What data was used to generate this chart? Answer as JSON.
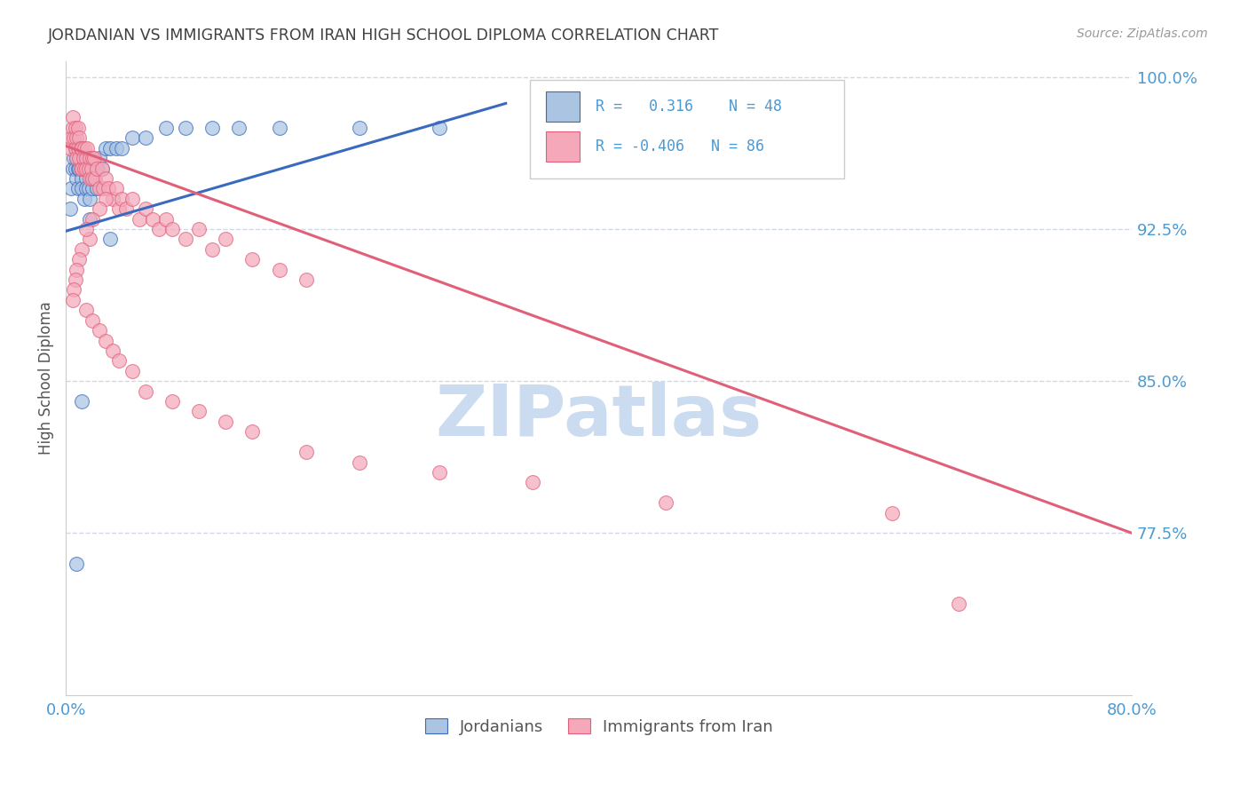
{
  "title": "JORDANIAN VS IMMIGRANTS FROM IRAN HIGH SCHOOL DIPLOMA CORRELATION CHART",
  "source": "Source: ZipAtlas.com",
  "ylabel": "High School Diploma",
  "ytick_labels": [
    "100.0%",
    "92.5%",
    "85.0%",
    "77.5%"
  ],
  "ytick_values": [
    1.0,
    0.925,
    0.85,
    0.775
  ],
  "blue_color": "#aac4e2",
  "pink_color": "#f4a8ba",
  "blue_line_color": "#3a6abf",
  "pink_line_color": "#e0607a",
  "watermark_text": "ZIPatlas",
  "watermark_color": "#ccdcf0",
  "background_color": "#ffffff",
  "grid_color": "#d0d8e8",
  "title_color": "#404040",
  "axis_label_color": "#4a9ad4",
  "xmin": 0.0,
  "xmax": 0.8,
  "ymin": 0.695,
  "ymax": 1.008,
  "blue_line": {
    "x0": 0.0,
    "x1": 0.33,
    "y0": 0.924,
    "y1": 0.987
  },
  "pink_line": {
    "x0": 0.0,
    "x1": 0.8,
    "y0": 0.966,
    "y1": 0.775
  },
  "jordanians_scatter": {
    "x": [
      0.003,
      0.004,
      0.005,
      0.006,
      0.007,
      0.007,
      0.008,
      0.008,
      0.009,
      0.009,
      0.01,
      0.01,
      0.011,
      0.012,
      0.012,
      0.013,
      0.014,
      0.015,
      0.015,
      0.016,
      0.017,
      0.018,
      0.018,
      0.019,
      0.02,
      0.02,
      0.021,
      0.022,
      0.023,
      0.025,
      0.027,
      0.03,
      0.033,
      0.038,
      0.042,
      0.05,
      0.06,
      0.075,
      0.09,
      0.11,
      0.13,
      0.16,
      0.22,
      0.28,
      0.033,
      0.018,
      0.012,
      0.008
    ],
    "y": [
      0.935,
      0.945,
      0.955,
      0.96,
      0.965,
      0.955,
      0.96,
      0.95,
      0.955,
      0.945,
      0.965,
      0.955,
      0.96,
      0.95,
      0.945,
      0.955,
      0.94,
      0.95,
      0.945,
      0.96,
      0.945,
      0.955,
      0.94,
      0.95,
      0.945,
      0.96,
      0.95,
      0.955,
      0.945,
      0.96,
      0.955,
      0.965,
      0.965,
      0.965,
      0.965,
      0.97,
      0.97,
      0.975,
      0.975,
      0.975,
      0.975,
      0.975,
      0.975,
      0.975,
      0.92,
      0.93,
      0.84,
      0.76
    ]
  },
  "iran_scatter": {
    "x": [
      0.003,
      0.004,
      0.005,
      0.005,
      0.006,
      0.007,
      0.007,
      0.008,
      0.008,
      0.009,
      0.009,
      0.01,
      0.01,
      0.011,
      0.011,
      0.012,
      0.012,
      0.013,
      0.014,
      0.014,
      0.015,
      0.015,
      0.016,
      0.017,
      0.018,
      0.018,
      0.019,
      0.02,
      0.02,
      0.021,
      0.022,
      0.023,
      0.025,
      0.027,
      0.028,
      0.03,
      0.032,
      0.035,
      0.038,
      0.04,
      0.042,
      0.045,
      0.05,
      0.055,
      0.06,
      0.065,
      0.07,
      0.075,
      0.08,
      0.09,
      0.1,
      0.11,
      0.12,
      0.14,
      0.16,
      0.18,
      0.03,
      0.025,
      0.02,
      0.018,
      0.015,
      0.012,
      0.01,
      0.008,
      0.007,
      0.006,
      0.005,
      0.015,
      0.02,
      0.025,
      0.03,
      0.035,
      0.04,
      0.05,
      0.06,
      0.08,
      0.1,
      0.12,
      0.14,
      0.18,
      0.22,
      0.28,
      0.35,
      0.45,
      0.62,
      0.67
    ],
    "y": [
      0.965,
      0.97,
      0.975,
      0.98,
      0.97,
      0.975,
      0.965,
      0.97,
      0.96,
      0.975,
      0.965,
      0.97,
      0.96,
      0.965,
      0.955,
      0.965,
      0.955,
      0.96,
      0.955,
      0.965,
      0.96,
      0.955,
      0.965,
      0.955,
      0.96,
      0.95,
      0.955,
      0.96,
      0.95,
      0.96,
      0.95,
      0.955,
      0.945,
      0.955,
      0.945,
      0.95,
      0.945,
      0.94,
      0.945,
      0.935,
      0.94,
      0.935,
      0.94,
      0.93,
      0.935,
      0.93,
      0.925,
      0.93,
      0.925,
      0.92,
      0.925,
      0.915,
      0.92,
      0.91,
      0.905,
      0.9,
      0.94,
      0.935,
      0.93,
      0.92,
      0.925,
      0.915,
      0.91,
      0.905,
      0.9,
      0.895,
      0.89,
      0.885,
      0.88,
      0.875,
      0.87,
      0.865,
      0.86,
      0.855,
      0.845,
      0.84,
      0.835,
      0.83,
      0.825,
      0.815,
      0.81,
      0.805,
      0.8,
      0.79,
      0.785,
      0.74
    ]
  }
}
